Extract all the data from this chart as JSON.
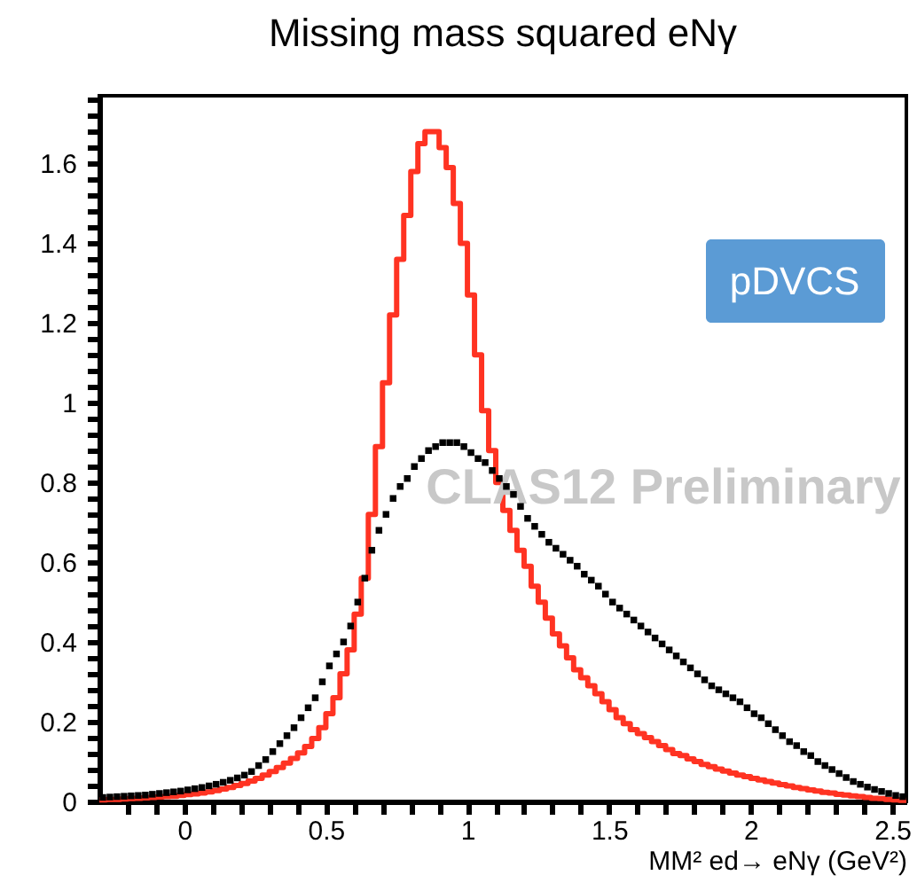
{
  "chart_data": {
    "type": "histogram",
    "title": "Missing mass squared eNγ",
    "xlabel": "MM² ed→ eNγ (GeV²)",
    "bins": [
      -0.3,
      -0.275,
      -0.25,
      -0.225,
      -0.2,
      -0.175,
      -0.15,
      -0.125,
      -0.1,
      -0.075,
      -0.05,
      -0.025,
      0,
      0.025,
      0.05,
      0.075,
      0.1,
      0.125,
      0.15,
      0.175,
      0.2,
      0.225,
      0.25,
      0.275,
      0.3,
      0.325,
      0.35,
      0.375,
      0.4,
      0.425,
      0.45,
      0.475,
      0.5,
      0.525,
      0.55,
      0.575,
      0.6,
      0.625,
      0.65,
      0.675,
      0.7,
      0.725,
      0.75,
      0.775,
      0.8,
      0.825,
      0.85,
      0.875,
      0.9,
      0.925,
      0.95,
      0.975,
      1,
      1.025,
      1.05,
      1.075,
      1.1,
      1.125,
      1.15,
      1.175,
      1.2,
      1.225,
      1.25,
      1.275,
      1.3,
      1.325,
      1.35,
      1.375,
      1.4,
      1.425,
      1.45,
      1.475,
      1.5,
      1.525,
      1.55,
      1.575,
      1.6,
      1.625,
      1.65,
      1.675,
      1.7,
      1.725,
      1.75,
      1.775,
      1.8,
      1.825,
      1.85,
      1.875,
      1.9,
      1.925,
      1.95,
      1.975,
      2,
      2.025,
      2.05,
      2.075,
      2.1,
      2.125,
      2.15,
      2.175,
      2.2,
      2.225,
      2.25,
      2.275,
      2.3,
      2.325,
      2.35,
      2.375,
      2.4,
      2.425,
      2.45,
      2.475,
      2.5,
      2.525,
      2.55
    ],
    "series": [
      {
        "color": "#ff3322",
        "values": [
          0.004,
          0.005,
          0.005,
          0.006,
          0.007,
          0.008,
          0.009,
          0.01,
          0.011,
          0.012,
          0.013,
          0.015,
          0.017,
          0.019,
          0.021,
          0.024,
          0.027,
          0.031,
          0.035,
          0.04,
          0.045,
          0.051,
          0.058,
          0.066,
          0.075,
          0.085,
          0.096,
          0.108,
          0.122,
          0.138,
          0.158,
          0.185,
          0.22,
          0.26,
          0.32,
          0.38,
          0.47,
          0.56,
          0.72,
          0.89,
          1.05,
          1.22,
          1.36,
          1.47,
          1.58,
          1.65,
          1.68,
          1.68,
          1.64,
          1.59,
          1.5,
          1.4,
          1.27,
          1.12,
          0.98,
          0.88,
          0.8,
          0.73,
          0.68,
          0.63,
          0.59,
          0.54,
          0.5,
          0.46,
          0.42,
          0.39,
          0.36,
          0.33,
          0.31,
          0.29,
          0.27,
          0.25,
          0.23,
          0.21,
          0.195,
          0.18,
          0.17,
          0.16,
          0.15,
          0.14,
          0.13,
          0.12,
          0.115,
          0.107,
          0.1,
          0.093,
          0.087,
          0.081,
          0.076,
          0.071,
          0.066,
          0.062,
          0.058,
          0.054,
          0.05,
          0.046,
          0.042,
          0.039,
          0.035,
          0.032,
          0.029,
          0.026,
          0.023,
          0.021,
          0.018,
          0.016,
          0.014,
          0.012,
          0.01,
          0.008,
          0.007,
          0.005,
          0.004,
          0.003
        ]
      },
      {
        "type": "scatter",
        "color": "#000000",
        "marker": "square",
        "x": [
          -0.2875,
          -0.2625,
          -0.2375,
          -0.2125,
          -0.1875,
          -0.1625,
          -0.1375,
          -0.1125,
          -0.0875,
          -0.0625,
          -0.0375,
          -0.0125,
          0.0125,
          0.0375,
          0.0625,
          0.0875,
          0.1125,
          0.1375,
          0.1625,
          0.1875,
          0.2125,
          0.2375,
          0.2625,
          0.2875,
          0.3125,
          0.3375,
          0.3625,
          0.3875,
          0.4125,
          0.4375,
          0.4625,
          0.4875,
          0.5125,
          0.5375,
          0.5625,
          0.5875,
          0.6125,
          0.6375,
          0.6625,
          0.6875,
          0.7125,
          0.7375,
          0.7625,
          0.7875,
          0.8125,
          0.8375,
          0.8625,
          0.8875,
          0.9125,
          0.9375,
          0.9625,
          0.9875,
          1.0125,
          1.0375,
          1.0625,
          1.0875,
          1.1125,
          1.1375,
          1.1625,
          1.1875,
          1.2125,
          1.2375,
          1.2625,
          1.2875,
          1.3125,
          1.3375,
          1.3625,
          1.3875,
          1.4125,
          1.4375,
          1.4625,
          1.4875,
          1.5125,
          1.5375,
          1.5625,
          1.5875,
          1.6125,
          1.6375,
          1.6625,
          1.6875,
          1.7125,
          1.7375,
          1.7625,
          1.7875,
          1.8125,
          1.8375,
          1.8625,
          1.8875,
          1.9125,
          1.9375,
          1.9625,
          1.9875,
          2.0125,
          2.0375,
          2.0625,
          2.0875,
          2.1125,
          2.1375,
          2.1625,
          2.1875,
          2.2125,
          2.2375,
          2.2625,
          2.2875,
          2.3125,
          2.3375,
          2.3625,
          2.3875,
          2.4125,
          2.4375,
          2.4625,
          2.4875,
          2.5125,
          2.5375
        ],
        "values": [
          0.01,
          0.011,
          0.012,
          0.013,
          0.014,
          0.015,
          0.016,
          0.018,
          0.02,
          0.022,
          0.024,
          0.026,
          0.029,
          0.032,
          0.035,
          0.039,
          0.043,
          0.048,
          0.053,
          0.059,
          0.066,
          0.075,
          0.09,
          0.105,
          0.125,
          0.145,
          0.165,
          0.185,
          0.21,
          0.235,
          0.26,
          0.3,
          0.34,
          0.37,
          0.4,
          0.44,
          0.5,
          0.56,
          0.63,
          0.68,
          0.72,
          0.76,
          0.79,
          0.81,
          0.84,
          0.86,
          0.88,
          0.89,
          0.9,
          0.9,
          0.9,
          0.89,
          0.875,
          0.86,
          0.85,
          0.83,
          0.81,
          0.79,
          0.77,
          0.74,
          0.71,
          0.69,
          0.67,
          0.65,
          0.635,
          0.62,
          0.605,
          0.59,
          0.57,
          0.555,
          0.54,
          0.52,
          0.5,
          0.485,
          0.47,
          0.455,
          0.44,
          0.425,
          0.41,
          0.395,
          0.38,
          0.365,
          0.35,
          0.335,
          0.32,
          0.305,
          0.29,
          0.28,
          0.27,
          0.26,
          0.25,
          0.235,
          0.22,
          0.21,
          0.195,
          0.18,
          0.165,
          0.15,
          0.14,
          0.125,
          0.115,
          0.1,
          0.09,
          0.08,
          0.07,
          0.06,
          0.05,
          0.043,
          0.036,
          0.03,
          0.025,
          0.02,
          0.015,
          0.012
        ]
      }
    ],
    "xlim": [
      -0.3,
      2.55
    ],
    "ylim": [
      0,
      1.77
    ],
    "xticks": [
      {
        "value": -0.2,
        "label": null
      },
      {
        "value": -0.1,
        "label": null
      },
      0,
      {
        "value": 0.1,
        "label": null
      },
      {
        "value": 0.2,
        "label": null
      },
      {
        "value": 0.3,
        "label": null
      },
      {
        "value": 0.4,
        "label": null
      },
      0.5,
      {
        "value": 0.6,
        "label": null
      },
      {
        "value": 0.7,
        "label": null
      },
      {
        "value": 0.8,
        "label": null
      },
      {
        "value": 0.9,
        "label": null
      },
      1,
      {
        "value": 1.1,
        "label": null
      },
      {
        "value": 1.2,
        "label": null
      },
      {
        "value": 1.3,
        "label": null
      },
      {
        "value": 1.4,
        "label": null
      },
      1.5,
      {
        "value": 1.6,
        "label": null
      },
      {
        "value": 1.7,
        "label": null
      },
      {
        "value": 1.8,
        "label": null
      },
      {
        "value": 1.9,
        "label": null
      },
      2,
      {
        "value": 2.1,
        "label": null
      },
      {
        "value": 2.2,
        "label": null
      },
      {
        "value": 2.3,
        "label": null
      },
      {
        "value": 2.4,
        "label": null
      },
      2.5
    ],
    "yticks": [
      0,
      {
        "value": 0.04,
        "label": null
      },
      {
        "value": 0.08,
        "label": null
      },
      {
        "value": 0.12,
        "label": null
      },
      {
        "value": 0.16,
        "label": null
      },
      0.2,
      {
        "value": 0.24,
        "label": null
      },
      {
        "value": 0.28,
        "label": null
      },
      {
        "value": 0.32,
        "label": null
      },
      {
        "value": 0.36,
        "label": null
      },
      0.4,
      {
        "value": 0.44,
        "label": null
      },
      {
        "value": 0.48,
        "label": null
      },
      {
        "value": 0.52,
        "label": null
      },
      {
        "value": 0.56,
        "label": null
      },
      0.6,
      {
        "value": 0.64,
        "label": null
      },
      {
        "value": 0.68,
        "label": null
      },
      {
        "value": 0.72,
        "label": null
      },
      {
        "value": 0.76,
        "label": null
      },
      0.8,
      {
        "value": 0.84,
        "label": null
      },
      {
        "value": 0.88,
        "label": null
      },
      {
        "value": 0.92,
        "label": null
      },
      {
        "value": 0.96,
        "label": null
      },
      1,
      {
        "value": 1.04,
        "label": null
      },
      {
        "value": 1.08,
        "label": null
      },
      {
        "value": 1.12,
        "label": null
      },
      {
        "value": 1.16,
        "label": null
      },
      1.2,
      {
        "value": 1.24,
        "label": null
      },
      {
        "value": 1.28,
        "label": null
      },
      {
        "value": 1.32,
        "label": null
      },
      {
        "value": 1.36,
        "label": null
      },
      1.4,
      {
        "value": 1.44,
        "label": null
      },
      {
        "value": 1.48,
        "label": null
      },
      {
        "value": 1.52,
        "label": null
      },
      {
        "value": 1.56,
        "label": null
      },
      1.6,
      {
        "value": 1.64,
        "label": null
      },
      {
        "value": 1.68,
        "label": null
      },
      {
        "value": 1.72,
        "label": null
      },
      {
        "value": 1.76,
        "label": null
      }
    ],
    "annotations": [
      "pDVCS",
      "CLAS12 Preliminary"
    ],
    "grid": false
  }
}
